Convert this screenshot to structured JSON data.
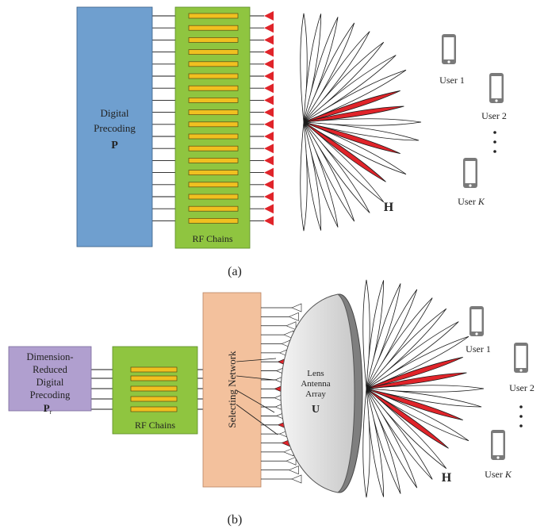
{
  "panel_a": {
    "caption": "(a)",
    "precoder_line1": "Digital",
    "precoder_line2": "Precoding",
    "precoder_symbol": "P",
    "rf_label": "RF Chains",
    "channel_label": "H",
    "users": [
      {
        "label": "User 1"
      },
      {
        "label": "User 2"
      },
      {
        "label": "User ",
        "italic": "K"
      }
    ]
  },
  "panel_b": {
    "caption": "(b)",
    "precoder_line1": "Dimension-",
    "precoder_line2": "Reduced",
    "precoder_line3": "Digital",
    "precoder_line4": "Precoding",
    "precoder_symbol": "P",
    "precoder_subscript": "r",
    "rf_label": "RF Chains",
    "selector_label": "Selecting Network",
    "lens_line1": "Lens",
    "lens_line2": "Antenna",
    "lens_line3": "Array",
    "lens_symbol": "U",
    "channel_label": "H",
    "users": [
      {
        "label": "User 1"
      },
      {
        "label": "User 2"
      },
      {
        "label": "User ",
        "italic": "K"
      }
    ]
  },
  "colors": {
    "digital_precoding": "#6f9fcf",
    "rf_chains": "#8fc540",
    "reduced_precoding": "#b09fcf",
    "selecting_network": "#f3c19d",
    "rf_bar": "#f0c020",
    "antenna": "#e0242a",
    "beam_red": "#e0242a",
    "lens": "#e4e4e4"
  }
}
